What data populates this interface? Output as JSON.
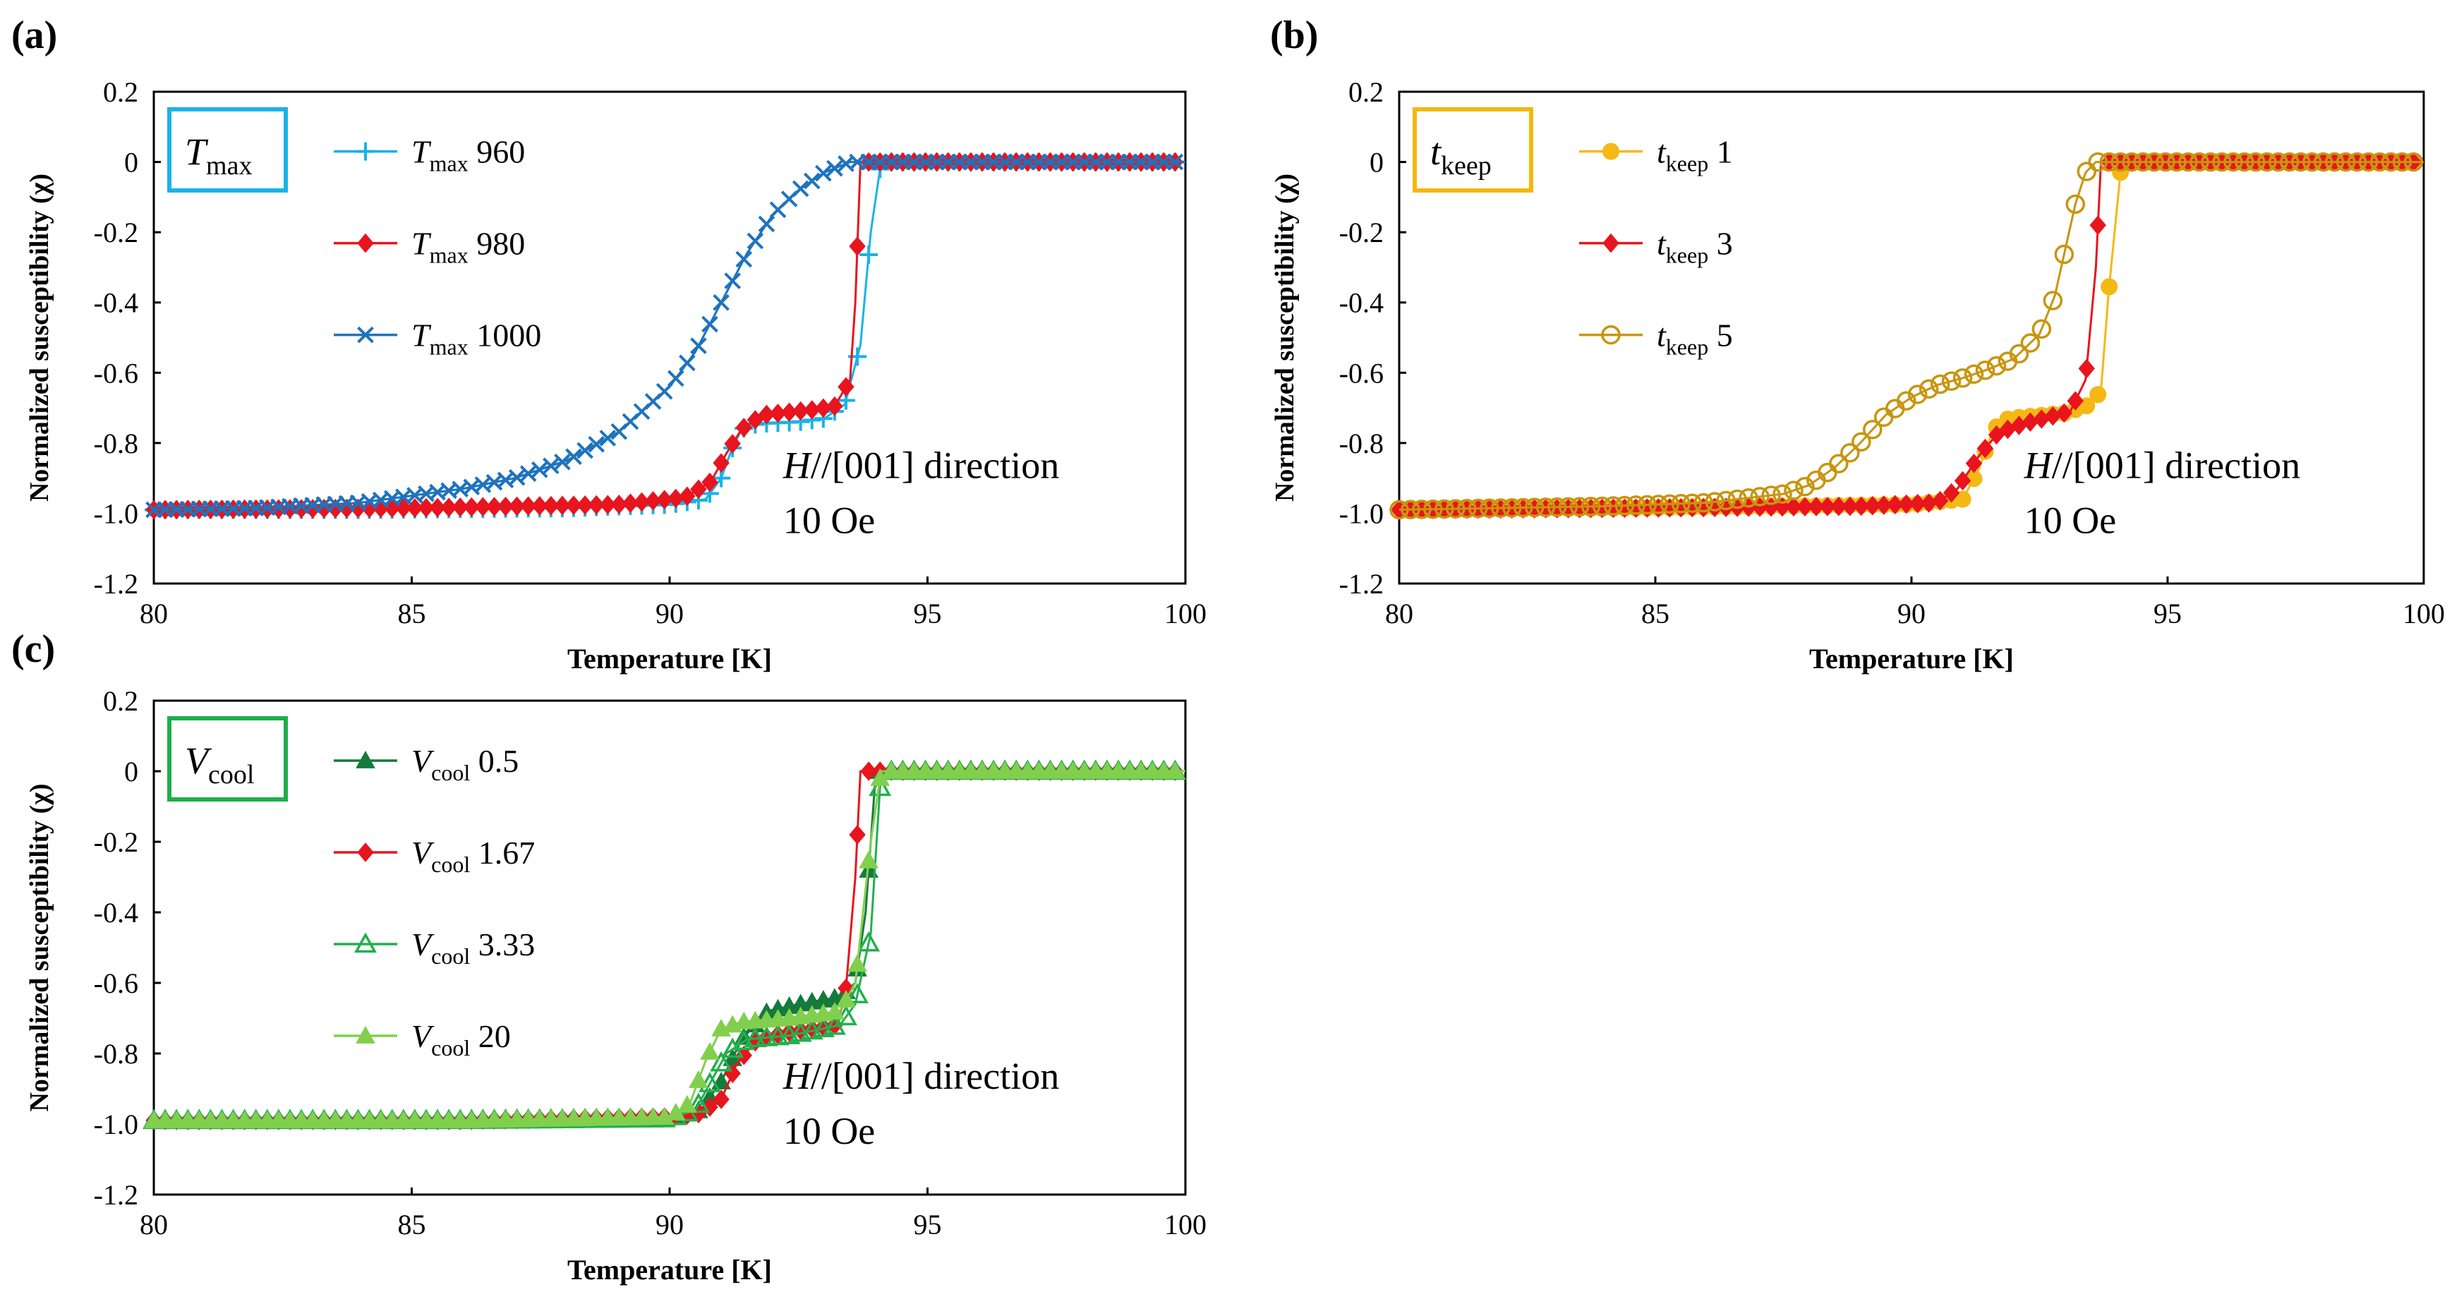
{
  "panels": [
    {
      "label": "(a)",
      "param_main": "T",
      "param_sub": "max",
      "box_color": "#1ab2e8",
      "annotation_line1_italic": "H",
      "annotation_line1_rest": "//[001] direction",
      "annotation_line2": "10 Oe",
      "chart_data": {
        "type": "line",
        "xlabel": "Temperature  [K]",
        "ylabel": "Normalized  susceptibility (χ)",
        "xlim": [
          80,
          100
        ],
        "ylim": [
          -1.2,
          0.2
        ],
        "xticks": [
          80,
          85,
          90,
          95,
          100
        ],
        "yticks": [
          0.2,
          0,
          -0.2,
          -0.4,
          -0.6,
          -0.8,
          -1.0,
          -1.2
        ],
        "ytick_labels": [
          "0.2",
          "0",
          "-0.2",
          "-0.4",
          "-0.6",
          "-0.8",
          "-1.0",
          "-1.2"
        ],
        "legend_position": "top-left",
        "grid": false,
        "series": [
          {
            "sym": "T",
            "sub": "max",
            "value": "960",
            "color": "#1ab2e8",
            "marker": "plus",
            "lineWidth": 3,
            "points": [
              [
                80,
                -0.99
              ],
              [
                84,
                -0.99
              ],
              [
                88,
                -0.985
              ],
              [
                90,
                -0.975
              ],
              [
                90.7,
                -0.96
              ],
              [
                91,
                -0.9
              ],
              [
                91.2,
                -0.82
              ],
              [
                91.4,
                -0.76
              ],
              [
                91.7,
                -0.745
              ],
              [
                92.5,
                -0.74
              ],
              [
                93,
                -0.73
              ],
              [
                93.4,
                -0.69
              ],
              [
                93.7,
                -0.52
              ],
              [
                93.9,
                -0.2
              ],
              [
                94.1,
                0
              ],
              [
                100,
                0
              ]
            ],
            "step": 0.22
          },
          {
            "sym": "T",
            "sub": "max",
            "value": "980",
            "color": "#e8141e",
            "marker": "diamond",
            "lineWidth": 3,
            "points": [
              [
                80,
                -0.99
              ],
              [
                85,
                -0.985
              ],
              [
                89,
                -0.975
              ],
              [
                90.3,
                -0.955
              ],
              [
                90.8,
                -0.91
              ],
              [
                91.1,
                -0.83
              ],
              [
                91.4,
                -0.76
              ],
              [
                91.8,
                -0.72
              ],
              [
                92.8,
                -0.705
              ],
              [
                93.2,
                -0.695
              ],
              [
                93.5,
                -0.62
              ],
              [
                93.6,
                -0.4
              ],
              [
                93.7,
                0
              ],
              [
                100,
                0
              ]
            ],
            "step": 0.22
          },
          {
            "sym": "T",
            "sub": "max",
            "value": "1000",
            "color": "#1e73be",
            "marker": "cross",
            "lineWidth": 3,
            "points": [
              [
                80,
                -0.99
              ],
              [
                82,
                -0.985
              ],
              [
                84,
                -0.97
              ],
              [
                86,
                -0.93
              ],
              [
                87,
                -0.9
              ],
              [
                88,
                -0.85
              ],
              [
                89,
                -0.77
              ],
              [
                90,
                -0.64
              ],
              [
                90.5,
                -0.54
              ],
              [
                91,
                -0.4
              ],
              [
                91.5,
                -0.26
              ],
              [
                92,
                -0.15
              ],
              [
                92.5,
                -0.08
              ],
              [
                93,
                -0.03
              ],
              [
                93.5,
                0
              ],
              [
                100,
                0
              ]
            ],
            "step": 0.22
          }
        ]
      }
    },
    {
      "label": "(b)",
      "param_main": "t",
      "param_sub": "keep",
      "box_color": "#f2b80f",
      "annotation_line1_italic": "H",
      "annotation_line1_rest": "//[001] direction",
      "annotation_line2": "10 Oe",
      "chart_data": {
        "type": "line",
        "xlabel": "Temperature  [K]",
        "ylabel": "Normalized  susceptibility (χ)",
        "xlim": [
          80,
          100
        ],
        "ylim": [
          -1.2,
          0.2
        ],
        "xticks": [
          80,
          85,
          90,
          95,
          100
        ],
        "yticks": [
          0.2,
          0,
          -0.2,
          -0.4,
          -0.6,
          -0.8,
          -1.0,
          -1.2
        ],
        "ytick_labels": [
          "0.2",
          "0",
          "-0.2",
          "-0.4",
          "-0.6",
          "-0.8",
          "-1.0",
          "-1.2"
        ],
        "legend_position": "top-left",
        "grid": false,
        "series": [
          {
            "sym": "t",
            "sub": "keep",
            "value": "1",
            "color": "#f5b814",
            "marker": "circle-filled",
            "lineWidth": 3,
            "points": [
              [
                80,
                -0.99
              ],
              [
                85,
                -0.985
              ],
              [
                90,
                -0.975
              ],
              [
                91,
                -0.96
              ],
              [
                91.3,
                -0.88
              ],
              [
                91.6,
                -0.76
              ],
              [
                91.9,
                -0.73
              ],
              [
                93,
                -0.715
              ],
              [
                93.5,
                -0.69
              ],
              [
                93.7,
                -0.65
              ],
              [
                93.85,
                -0.37
              ],
              [
                94.1,
                0
              ],
              [
                100,
                0
              ]
            ],
            "step": 0.22
          },
          {
            "sym": "t",
            "sub": "keep",
            "value": "3",
            "color": "#e8141e",
            "marker": "diamond",
            "lineWidth": 3,
            "points": [
              [
                80,
                -0.99
              ],
              [
                85,
                -0.985
              ],
              [
                89,
                -0.98
              ],
              [
                90.5,
                -0.97
              ],
              [
                90.9,
                -0.93
              ],
              [
                91.3,
                -0.84
              ],
              [
                91.7,
                -0.77
              ],
              [
                92.2,
                -0.745
              ],
              [
                93.1,
                -0.71
              ],
              [
                93.4,
                -0.62
              ],
              [
                93.6,
                -0.3
              ],
              [
                93.7,
                0
              ],
              [
                100,
                0
              ]
            ],
            "step": 0.22
          },
          {
            "sym": "t",
            "sub": "keep",
            "value": "5",
            "color": "#c8950f",
            "marker": "circle-open",
            "lineWidth": 3,
            "points": [
              [
                80,
                -0.99
              ],
              [
                84,
                -0.98
              ],
              [
                86,
                -0.97
              ],
              [
                87.5,
                -0.945
              ],
              [
                88,
                -0.92
              ],
              [
                88.5,
                -0.87
              ],
              [
                89,
                -0.8
              ],
              [
                89.5,
                -0.72
              ],
              [
                90,
                -0.67
              ],
              [
                90.5,
                -0.635
              ],
              [
                91,
                -0.615
              ],
              [
                91.5,
                -0.59
              ],
              [
                92,
                -0.56
              ],
              [
                92.5,
                -0.49
              ],
              [
                92.8,
                -0.38
              ],
              [
                93,
                -0.25
              ],
              [
                93.2,
                -0.12
              ],
              [
                93.4,
                -0.03
              ],
              [
                93.6,
                0
              ],
              [
                100,
                0
              ]
            ],
            "step": 0.22
          }
        ]
      }
    },
    {
      "label": "(c)",
      "param_main": "V",
      "param_sub": "cool",
      "box_color": "#1fae4a",
      "annotation_line1_italic": "H",
      "annotation_line1_rest": "//[001] direction",
      "annotation_line2": "10 Oe",
      "chart_data": {
        "type": "line",
        "xlabel": "Temperature  [K]",
        "ylabel": "Normalized  susceptibility (χ)",
        "xlim": [
          80,
          100
        ],
        "ylim": [
          -1.2,
          0.2
        ],
        "xticks": [
          80,
          85,
          90,
          95,
          100
        ],
        "yticks": [
          0.2,
          0,
          -0.2,
          -0.4,
          -0.6,
          -0.8,
          -1.0,
          -1.2
        ],
        "ytick_labels": [
          "0.2",
          "0",
          "-0.2",
          "-0.4",
          "-0.6",
          "-0.8",
          "-1.0",
          "-1.2"
        ],
        "legend_position": "top-left",
        "grid": false,
        "series": [
          {
            "sym": "V",
            "sub": "cool",
            "value": "0.5",
            "color": "#157a3c",
            "marker": "triangle-filled",
            "lineWidth": 3,
            "points": [
              [
                80,
                -0.99
              ],
              [
                86,
                -0.99
              ],
              [
                90,
                -0.985
              ],
              [
                90.6,
                -0.96
              ],
              [
                91,
                -0.88
              ],
              [
                91.4,
                -0.76
              ],
              [
                91.9,
                -0.68
              ],
              [
                92.5,
                -0.66
              ],
              [
                93.3,
                -0.64
              ],
              [
                93.6,
                -0.6
              ],
              [
                93.8,
                -0.4
              ],
              [
                94,
                0
              ],
              [
                100,
                0
              ]
            ],
            "step": 0.22
          },
          {
            "sym": "V",
            "sub": "cool",
            "value": "1.67",
            "color": "#e8141e",
            "marker": "diamond",
            "lineWidth": 3,
            "points": [
              [
                80,
                -0.99
              ],
              [
                86,
                -0.99
              ],
              [
                90,
                -0.98
              ],
              [
                90.6,
                -0.97
              ],
              [
                91,
                -0.93
              ],
              [
                91.3,
                -0.83
              ],
              [
                91.7,
                -0.76
              ],
              [
                92.3,
                -0.74
              ],
              [
                93.2,
                -0.72
              ],
              [
                93.4,
                -0.65
              ],
              [
                93.6,
                -0.3
              ],
              [
                93.7,
                0
              ],
              [
                100,
                0
              ]
            ],
            "step": 0.22
          },
          {
            "sym": "V",
            "sub": "cool",
            "value": "3.33",
            "color": "#22b04c",
            "marker": "triangle-open",
            "lineWidth": 3,
            "points": [
              [
                80,
                -0.99
              ],
              [
                86,
                -0.99
              ],
              [
                90,
                -0.985
              ],
              [
                90.5,
                -0.96
              ],
              [
                90.8,
                -0.88
              ],
              [
                91.1,
                -0.8
              ],
              [
                91.5,
                -0.76
              ],
              [
                92.3,
                -0.75
              ],
              [
                93.3,
                -0.72
              ],
              [
                93.6,
                -0.66
              ],
              [
                93.9,
                -0.46
              ],
              [
                94.1,
                0
              ],
              [
                100,
                0
              ]
            ],
            "step": 0.22
          },
          {
            "sym": "V",
            "sub": "cool",
            "value": "20",
            "color": "#82cf4e",
            "marker": "triangle-filled",
            "lineWidth": 3,
            "points": [
              [
                80,
                -0.99
              ],
              [
                86,
                -0.99
              ],
              [
                90,
                -0.98
              ],
              [
                90.4,
                -0.94
              ],
              [
                90.7,
                -0.82
              ],
              [
                91,
                -0.73
              ],
              [
                91.4,
                -0.71
              ],
              [
                92.3,
                -0.7
              ],
              [
                93.3,
                -0.68
              ],
              [
                93.6,
                -0.6
              ],
              [
                93.9,
                -0.2
              ],
              [
                94.1,
                0
              ],
              [
                100,
                0
              ]
            ],
            "step": 0.22
          }
        ]
      }
    }
  ]
}
